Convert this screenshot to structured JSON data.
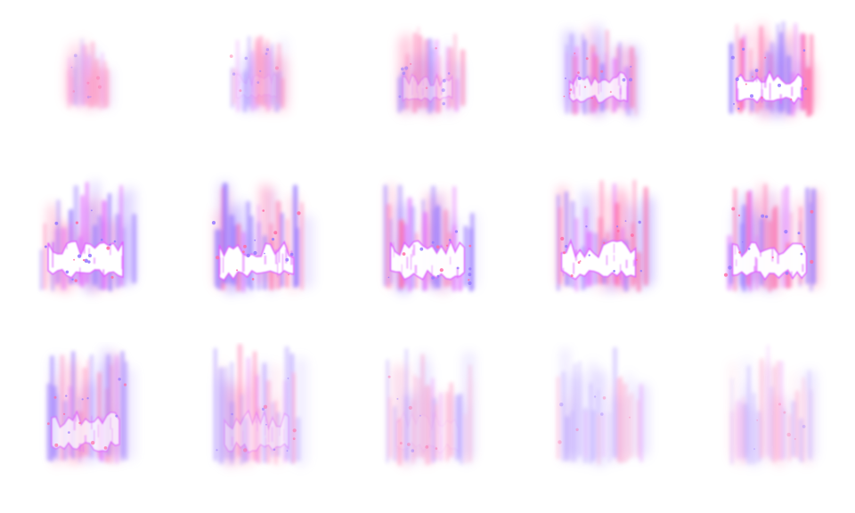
{
  "sprite_sheet": {
    "columns": 5,
    "rows": 3,
    "frames": [
      {
        "intensity": 0.15,
        "spread": 0.4,
        "rise": 0.35
      },
      {
        "intensity": 0.28,
        "spread": 0.5,
        "rise": 0.45
      },
      {
        "intensity": 0.45,
        "spread": 0.6,
        "rise": 0.55
      },
      {
        "intensity": 0.75,
        "spread": 0.68,
        "rise": 0.62
      },
      {
        "intensity": 0.95,
        "spread": 0.75,
        "rise": 0.7
      },
      {
        "intensity": 1.0,
        "spread": 0.85,
        "rise": 0.85
      },
      {
        "intensity": 0.95,
        "spread": 0.85,
        "rise": 0.9
      },
      {
        "intensity": 0.9,
        "spread": 0.85,
        "rise": 0.9
      },
      {
        "intensity": 0.92,
        "spread": 0.85,
        "rise": 0.88
      },
      {
        "intensity": 0.9,
        "spread": 0.85,
        "rise": 0.88
      },
      {
        "intensity": 0.7,
        "spread": 0.8,
        "rise": 0.95
      },
      {
        "intensity": 0.45,
        "spread": 0.78,
        "rise": 1.0
      },
      {
        "intensity": 0.25,
        "spread": 0.78,
        "rise": 1.0
      },
      {
        "intensity": 0.12,
        "spread": 0.78,
        "rise": 1.0
      },
      {
        "intensity": 0.05,
        "spread": 0.78,
        "rise": 1.0
      }
    ],
    "colors": {
      "pink": "#ff6fa8",
      "violet": "#9a7bff",
      "magenta": "#e066ff",
      "core": "#ffffff",
      "background": "#ffffff"
    },
    "effect": "pink-violet-energy-flame"
  }
}
